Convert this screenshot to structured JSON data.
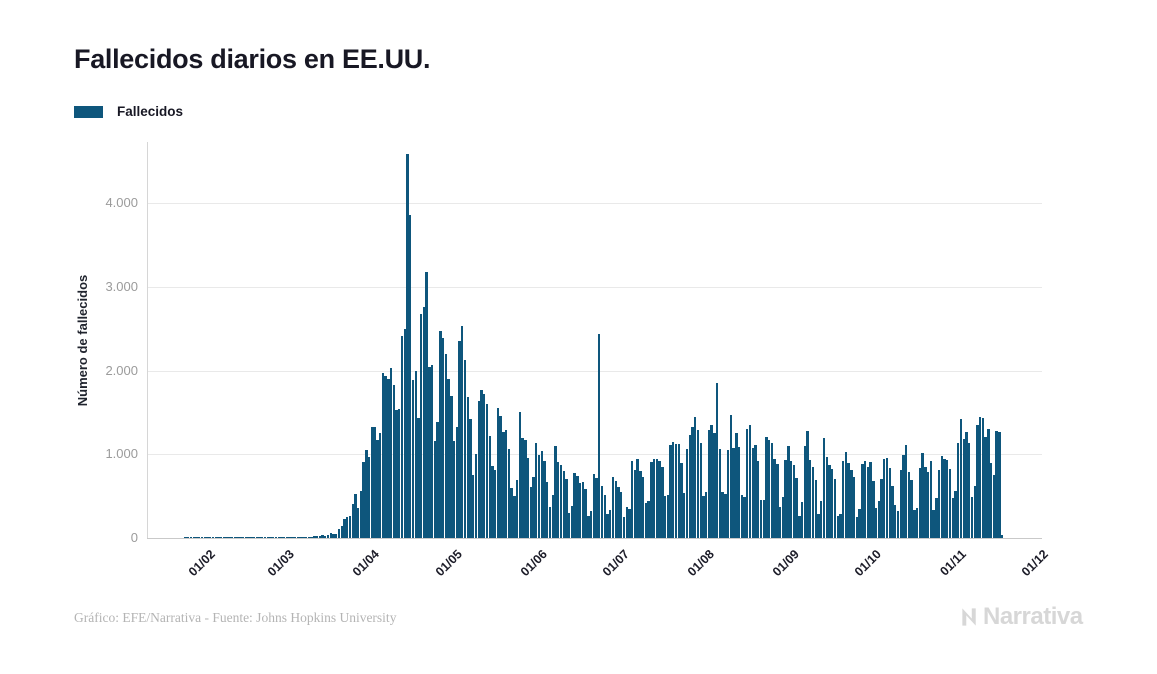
{
  "title": "Fallecidos diarios en EE.UU.",
  "legend": {
    "label": "Fallecidos",
    "color": "#0e567c"
  },
  "footer": {
    "credit": "Gráfico: EFE/Narrativa - Fuente: Johns Hopkins University",
    "logo_text": "Narrativa"
  },
  "colors": {
    "bar": "#0e567c",
    "title_text": "#181824",
    "y_tick_text": "#9b9b9b",
    "x_tick_text": "#1c1c28",
    "gridline": "#e9e9e9",
    "footer_text": "#b4b4b4",
    "logo": "#d7d7d7"
  },
  "chart_data": {
    "type": "bar",
    "title": "Fallecidos diarios en EE.UU.",
    "xlabel": "",
    "ylabel": "Número de fallecidos",
    "ylim": [
      0,
      4750
    ],
    "grid": true,
    "legend_position": "top-left",
    "x_tick_labels": [
      "01/02",
      "01/03",
      "01/04",
      "01/05",
      "01/06",
      "01/07",
      "01/08",
      "01/09",
      "01/10",
      "01/11",
      "01/12"
    ],
    "y_tick_labels": [
      "0",
      "1.000",
      "2.000",
      "3.000",
      "4.000"
    ],
    "date_format": "dd/mm",
    "series": [
      {
        "name": "Fallecidos",
        "color": "#0e567c",
        "first_bar_date": "22/01",
        "last_bar_date": "19/11",
        "values": [
          0,
          0,
          0,
          0,
          1,
          1,
          1,
          1,
          1,
          1,
          1,
          1,
          1,
          1,
          1,
          1,
          1,
          1,
          1,
          1,
          1,
          1,
          1,
          1,
          1,
          1,
          1,
          1,
          1,
          1,
          1,
          1,
          1,
          1,
          1,
          1,
          1,
          1,
          1,
          1,
          1,
          2,
          3,
          4,
          3,
          4,
          5,
          7,
          9,
          11,
          14,
          18,
          22,
          26,
          30,
          23,
          41,
          57,
          49,
          46,
          111,
          140,
          225,
          247,
          268,
          411,
          525,
          363,
          558,
          912,
          1049,
          968,
          1321,
          1331,
          1165,
          1255,
          1970,
          1940,
          1900,
          2035,
          1830,
          1528,
          1535,
          2407,
          2494,
          4591,
          3857,
          1891,
          1997,
          1433,
          2674,
          2763,
          3179,
          2042,
          2065,
          1157,
          1384,
          2470,
          2390,
          2201,
          1897,
          1691,
          1154,
          1324,
          2350,
          2528,
          2129,
          1687,
          1422,
          750,
          1008,
          1630,
          1772,
          1715,
          1595,
          1218,
          865,
          808,
          1552,
          1461,
          1263,
          1294,
          1066,
          592,
          505,
          693,
          1505,
          1199,
          1175,
          960,
          605,
          730,
          1134,
          997,
          1036,
          921,
          671,
          372,
          510,
          1093,
          902,
          868,
          802,
          710,
          302,
          383,
          775,
          738,
          653,
          672,
          580,
          267,
          317,
          768,
          722,
          2437,
          619,
          515,
          287,
          335,
          724,
          685,
          613,
          553,
          254,
          372,
          352,
          917,
          811,
          942,
          803,
          725,
          418,
          436,
          903,
          941,
          947,
          917,
          843,
          506,
          516,
          1108,
          1144,
          1117,
          1123,
          901,
          537,
          1058,
          1232,
          1323,
          1449,
          1291,
          1134,
          506,
          548,
          1284,
          1353,
          1250,
          1851,
          1062,
          547,
          531,
          1053,
          1473,
          1076,
          1259,
          1085,
          511,
          489,
          1299,
          1347,
          1074,
          1105,
          922,
          449,
          457,
          1205,
          1175,
          1134,
          946,
          884,
          365,
          486,
          937,
          1096,
          914,
          868,
          717,
          267,
          426,
          1103,
          1280,
          928,
          851,
          695,
          281,
          436,
          1190,
          963,
          874,
          823,
          702,
          258,
          288,
          925,
          1024,
          891,
          814,
          723,
          254,
          344,
          889,
          916,
          848,
          907,
          679,
          362,
          445,
          708,
          940,
          953,
          830,
          619,
          391,
          324,
          809,
          989,
          1110,
          784,
          687,
          340,
          356,
          831,
          1015,
          852,
          786,
          917,
          340,
          477,
          811,
          979,
          940,
          931,
          826,
          474,
          556,
          1130,
          1420,
          1187,
          1265,
          1133,
          489,
          620,
          1347,
          1445,
          1437,
          1210,
          1301,
          890,
          753,
          1280,
          1270,
          36
        ]
      }
    ]
  }
}
